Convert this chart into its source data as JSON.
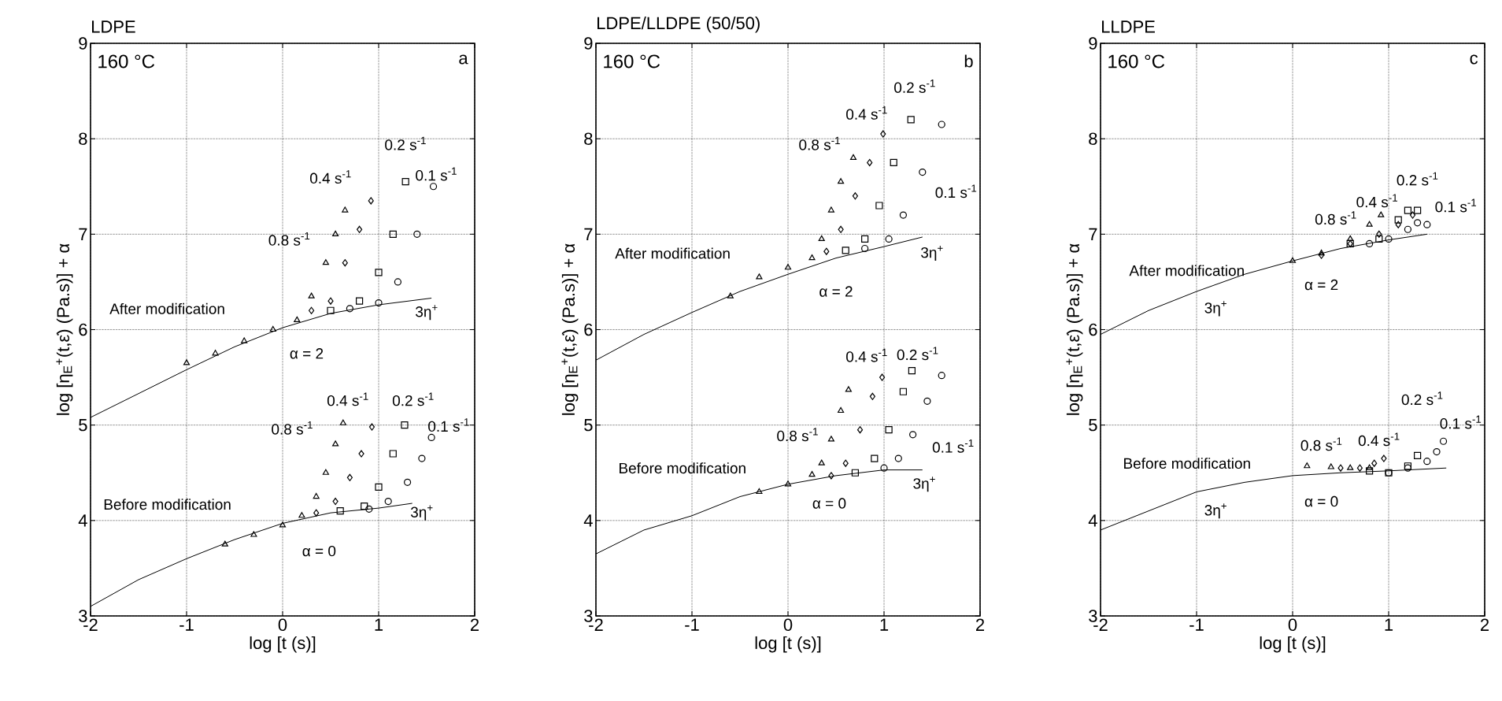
{
  "chart_data": [
    {
      "type": "scatter",
      "title": "LDPE",
      "xlabel": "log [t (s)]",
      "ylabel": "log [η$_{E}$$^{+}$(t,ε̇) (Pa.s)] + α",
      "xlim": [
        -2,
        2
      ],
      "ylim": [
        3,
        9
      ],
      "xticks": [
        -2,
        -1,
        0,
        1,
        2
      ],
      "yticks": [
        3,
        4,
        5,
        6,
        7,
        8,
        9
      ],
      "grid": true,
      "annotations": [
        "160 °C",
        "a",
        "0.2 s$^{-1}$",
        "0.1 s$^{-1}$",
        "0.4 s$^{-1}$",
        "0.8 s$^{-1}$",
        "After modification",
        "3η$^{+}$",
        "α = 2",
        "0.4 s$^{-1}$",
        "0.2 s$^{-1}$",
        "0.8 s$^{-1}$",
        "0.1 s$^{-1}$",
        "Before modification",
        "3η$^{+}$",
        "α = 0"
      ],
      "series": [
        {
          "type": "line",
          "color": "#000000",
          "marker": "none",
          "x": [
            -2,
            -1.5,
            -1,
            -0.5,
            0,
            0.5,
            1,
            1.55
          ],
          "values": [
            5.08,
            5.33,
            5.58,
            5.82,
            6.02,
            6.17,
            6.26,
            6.33
          ]
        },
        {
          "color": "#000000",
          "marker": "triangle",
          "x": [
            -1,
            -0.7,
            -0.4,
            -0.1,
            0.15,
            0.3,
            0.45,
            0.55,
            0.65
          ],
          "values": [
            5.65,
            5.75,
            5.88,
            6.0,
            6.1,
            6.35,
            6.7,
            7.0,
            7.25
          ]
        },
        {
          "color": "#000000",
          "marker": "diamond",
          "x": [
            0.3,
            0.5,
            0.65,
            0.8,
            0.92
          ],
          "values": [
            6.2,
            6.3,
            6.7,
            7.05,
            7.35
          ]
        },
        {
          "color": "#000000",
          "marker": "square",
          "x": [
            0.5,
            0.8,
            1.0,
            1.15,
            1.28
          ],
          "values": [
            6.2,
            6.3,
            6.6,
            7.0,
            7.55
          ]
        },
        {
          "color": "#000000",
          "marker": "circle",
          "x": [
            0.7,
            1.0,
            1.2,
            1.4,
            1.57
          ],
          "values": [
            6.22,
            6.28,
            6.5,
            7.0,
            7.5
          ]
        },
        {
          "type": "line",
          "color": "#000000",
          "marker": "none",
          "x": [
            -2,
            -1.5,
            -1,
            -0.5,
            0,
            0.5,
            1,
            1.35
          ],
          "values": [
            3.1,
            3.38,
            3.6,
            3.8,
            3.97,
            4.08,
            4.13,
            4.18
          ]
        },
        {
          "color": "#000000",
          "marker": "triangle",
          "x": [
            -0.6,
            -0.3,
            0,
            0.2,
            0.35,
            0.45,
            0.55,
            0.63
          ],
          "values": [
            3.75,
            3.85,
            3.95,
            4.05,
            4.25,
            4.5,
            4.8,
            5.02
          ]
        },
        {
          "color": "#000000",
          "marker": "diamond",
          "x": [
            0.35,
            0.55,
            0.7,
            0.82,
            0.93
          ],
          "values": [
            4.08,
            4.2,
            4.45,
            4.7,
            4.98
          ]
        },
        {
          "color": "#000000",
          "marker": "square",
          "x": [
            0.6,
            0.85,
            1.0,
            1.15,
            1.27
          ],
          "values": [
            4.1,
            4.15,
            4.35,
            4.7,
            5.0
          ]
        },
        {
          "color": "#000000",
          "marker": "circle",
          "x": [
            0.9,
            1.1,
            1.3,
            1.45,
            1.55
          ],
          "values": [
            4.12,
            4.2,
            4.4,
            4.65,
            4.87
          ]
        }
      ]
    },
    {
      "type": "scatter",
      "title": "LDPE/LLDPE (50/50)",
      "xlabel": "log [t (s)]",
      "ylabel": "log [η$_{E}$$^{+}$(t,ε̇) (Pa.s)] + α",
      "xlim": [
        -2,
        2
      ],
      "ylim": [
        3,
        9
      ],
      "xticks": [
        -2,
        -1,
        0,
        1,
        2
      ],
      "yticks": [
        3,
        4,
        5,
        6,
        7,
        8,
        9
      ],
      "grid": true,
      "annotations": [
        "160 °C",
        "b",
        "0.2 s$^{-1}$",
        "0.4 s$^{-1}$",
        "0.8 s$^{-1}$",
        "0.1 s$^{-1}$",
        "After modification",
        "3η$^{+}$",
        "α = 2",
        "0.4 s$^{-1}$",
        "0.2 s$^{-1}$",
        "0.8 s$^{-1}$",
        "0.1 s$^{-1}$",
        "Before modification",
        "3η$^{+}$",
        "α = 0"
      ],
      "series": [
        {
          "type": "line",
          "color": "#000000",
          "marker": "none",
          "x": [
            -2,
            -1.5,
            -1,
            -0.5,
            0,
            0.5,
            1,
            1.4
          ],
          "values": [
            5.68,
            5.95,
            6.18,
            6.4,
            6.58,
            6.75,
            6.87,
            6.97
          ]
        },
        {
          "color": "#000000",
          "marker": "triangle",
          "x": [
            -0.6,
            -0.3,
            0,
            0.25,
            0.35,
            0.45,
            0.55,
            0.68
          ],
          "values": [
            6.35,
            6.55,
            6.65,
            6.75,
            6.95,
            7.25,
            7.55,
            7.8
          ]
        },
        {
          "color": "#000000",
          "marker": "diamond",
          "x": [
            0.4,
            0.55,
            0.7,
            0.85,
            0.99
          ],
          "values": [
            6.82,
            7.05,
            7.4,
            7.75,
            8.05
          ]
        },
        {
          "color": "#000000",
          "marker": "square",
          "x": [
            0.6,
            0.8,
            0.95,
            1.1,
            1.28
          ],
          "values": [
            6.83,
            6.95,
            7.3,
            7.75,
            8.2
          ]
        },
        {
          "color": "#000000",
          "marker": "circle",
          "x": [
            0.8,
            1.05,
            1.2,
            1.4,
            1.6
          ],
          "values": [
            6.85,
            6.95,
            7.2,
            7.65,
            8.15
          ]
        },
        {
          "type": "line",
          "color": "#000000",
          "marker": "none",
          "x": [
            -2,
            -1.5,
            -1,
            -0.5,
            0,
            0.5,
            1,
            1.4
          ],
          "values": [
            3.65,
            3.9,
            4.05,
            4.25,
            4.38,
            4.47,
            4.53,
            4.53
          ]
        },
        {
          "color": "#000000",
          "marker": "triangle",
          "x": [
            -0.3,
            0,
            0.25,
            0.35,
            0.45,
            0.55,
            0.63
          ],
          "values": [
            4.3,
            4.38,
            4.48,
            4.6,
            4.85,
            5.15,
            5.37
          ]
        },
        {
          "color": "#000000",
          "marker": "diamond",
          "x": [
            0.45,
            0.6,
            0.75,
            0.88,
            0.98
          ],
          "values": [
            4.47,
            4.6,
            4.95,
            5.3,
            5.5
          ]
        },
        {
          "color": "#000000",
          "marker": "square",
          "x": [
            0.7,
            0.9,
            1.05,
            1.2,
            1.29
          ],
          "values": [
            4.5,
            4.65,
            4.95,
            5.35,
            5.57
          ]
        },
        {
          "color": "#000000",
          "marker": "circle",
          "x": [
            1.0,
            1.15,
            1.3,
            1.45,
            1.6
          ],
          "values": [
            4.55,
            4.65,
            4.9,
            5.25,
            5.52
          ]
        }
      ]
    },
    {
      "type": "scatter",
      "title": "LLDPE",
      "xlabel": "log [t (s)]",
      "ylabel": "log [η$_{E}$$^{+}$(t,ε̇) (Pa.s)] + α",
      "xlim": [
        -2,
        2
      ],
      "ylim": [
        3,
        9
      ],
      "xticks": [
        -2,
        -1,
        0,
        1,
        2
      ],
      "yticks": [
        3,
        4,
        5,
        6,
        7,
        8,
        9
      ],
      "grid": true,
      "annotations": [
        "160 °C",
        "c",
        "0.2 s$^{-1}$",
        "0.4 s$^{-1}$",
        "0.8 s$^{-1}$",
        "0.1 s$^{-1}$",
        "After modification",
        "3η$^{+}$",
        "α = 2",
        "0.2 s$^{-1}$",
        "0.1 s$^{-1}$",
        "0.8 s$^{-1}$",
        "0.4 s$^{-1}$",
        "Before modification",
        "3η$^{+}$",
        "α = 0"
      ],
      "series": [
        {
          "type": "line",
          "color": "#000000",
          "marker": "none",
          "x": [
            -2,
            -1.5,
            -1,
            -0.5,
            0,
            0.5,
            1,
            1.4
          ],
          "values": [
            5.95,
            6.2,
            6.4,
            6.58,
            6.72,
            6.85,
            6.94,
            7.0
          ]
        },
        {
          "color": "#000000",
          "marker": "triangle",
          "x": [
            0,
            0.3,
            0.6,
            0.8,
            0.92
          ],
          "values": [
            6.72,
            6.8,
            6.95,
            7.1,
            7.2
          ]
        },
        {
          "color": "#000000",
          "marker": "diamond",
          "x": [
            0.3,
            0.6,
            0.9,
            1.1,
            1.25
          ],
          "values": [
            6.78,
            6.9,
            7.0,
            7.1,
            7.2
          ]
        },
        {
          "color": "#000000",
          "marker": "square",
          "x": [
            0.6,
            0.9,
            1.1,
            1.2,
            1.3
          ],
          "values": [
            6.9,
            6.95,
            7.15,
            7.25,
            7.25
          ]
        },
        {
          "color": "#000000",
          "marker": "circle",
          "x": [
            0.8,
            1.0,
            1.2,
            1.3,
            1.4
          ],
          "values": [
            6.9,
            6.95,
            7.05,
            7.12,
            7.1
          ]
        },
        {
          "type": "line",
          "color": "#000000",
          "marker": "none",
          "x": [
            -2,
            -1.5,
            -1,
            -0.5,
            0,
            0.5,
            1,
            1.6
          ],
          "values": [
            3.9,
            4.1,
            4.3,
            4.4,
            4.47,
            4.5,
            4.52,
            4.55
          ]
        },
        {
          "color": "#000000",
          "marker": "triangle",
          "x": [
            0.15,
            0.4,
            0.6,
            0.8
          ],
          "values": [
            4.57,
            4.56,
            4.55,
            4.55
          ]
        },
        {
          "color": "#000000",
          "marker": "diamond",
          "x": [
            0.5,
            0.7,
            0.85,
            0.95
          ],
          "values": [
            4.55,
            4.55,
            4.6,
            4.65
          ]
        },
        {
          "color": "#000000",
          "marker": "square",
          "x": [
            0.8,
            1.0,
            1.2,
            1.3
          ],
          "values": [
            4.52,
            4.5,
            4.57,
            4.68
          ]
        },
        {
          "color": "#000000",
          "marker": "circle",
          "x": [
            1.0,
            1.2,
            1.4,
            1.5,
            1.57
          ],
          "values": [
            4.5,
            4.55,
            4.62,
            4.72,
            4.83
          ]
        }
      ]
    }
  ]
}
